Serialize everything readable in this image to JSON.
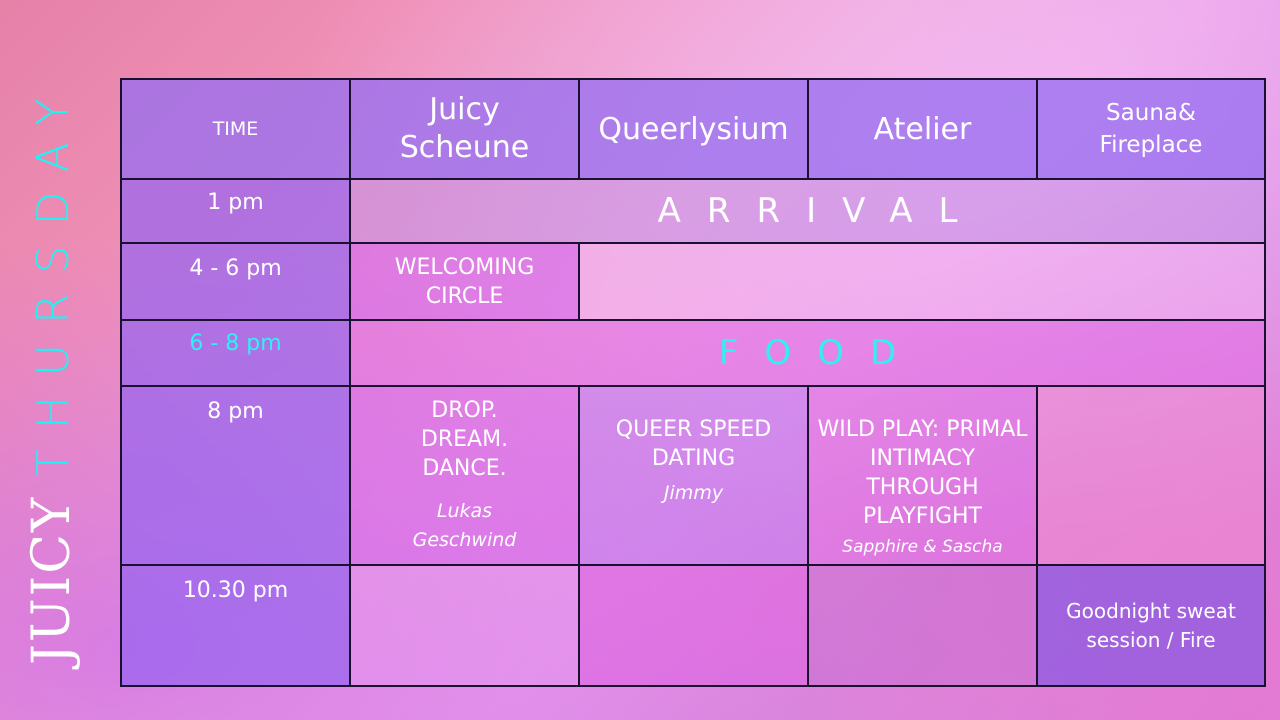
{
  "sidebar": {
    "day": "THURSDAY",
    "logo": "JUICY"
  },
  "header": {
    "time": "TIME",
    "columns": [
      "Juicy Scheune",
      "Queerlysium",
      "Atelier",
      "Sauna& Fireplace"
    ]
  },
  "rows": [
    {
      "time": "1 pm",
      "event": "ARRIVAL"
    },
    {
      "time": "4 - 6 pm",
      "event": "WELCOMING CIRCLE"
    },
    {
      "time": "6 - 8 pm",
      "event": "FOOD"
    },
    {
      "time": "8 pm",
      "events": [
        {
          "title": "DROP. DREAM. DANCE.",
          "host": "Lukas Geschwind"
        },
        {
          "title": "QUEER SPEED DATING",
          "host": "Jimmy"
        },
        {
          "title": "WILD PLAY: PRIMAL INTIMACY THROUGH PLAYFIGHT",
          "host": "Sapphire & Sascha"
        }
      ]
    },
    {
      "time": "10.30 pm",
      "event": "Goodnight sweat session / Fire"
    }
  ],
  "colors": {
    "accent": "#1ef3f6",
    "border": "#1a1030"
  }
}
